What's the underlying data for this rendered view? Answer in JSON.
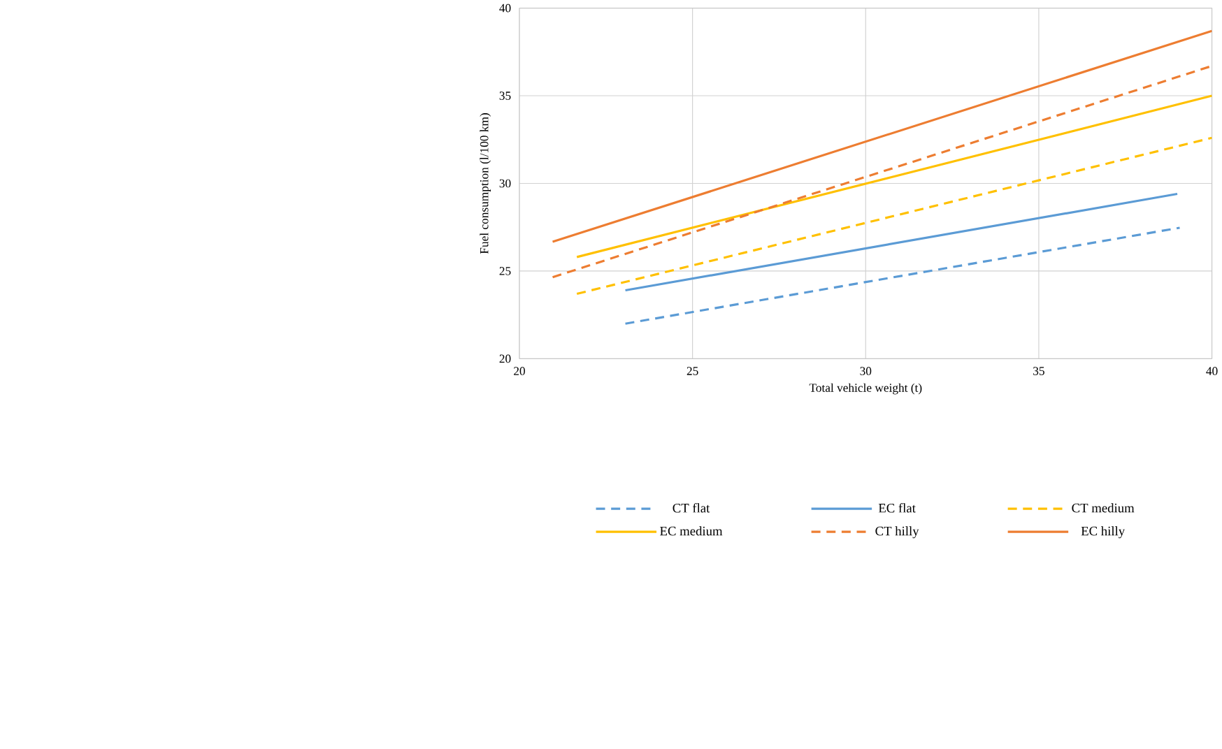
{
  "chart_data": {
    "type": "line",
    "xlabel": "Total vehicle  weight  (t)",
    "ylabel": "Fuel consumption  (l/100 km)",
    "xlim": [
      20,
      40
    ],
    "ylim": [
      20,
      40
    ],
    "xticks": [
      20,
      25,
      30,
      35,
      40
    ],
    "yticks": [
      20,
      25,
      30,
      35,
      40
    ],
    "grid": true,
    "legend": "bottom",
    "marker": "none",
    "series": [
      {
        "name": "CT flat",
        "color": "#5b9bd5",
        "line_style": "dashed",
        "x": [
          23.06,
          39.07
        ],
        "values": [
          22.0,
          27.47
        ]
      },
      {
        "name": "EC flat",
        "color": "#5b9bd5",
        "line_style": "solid",
        "x": [
          23.06,
          39.0
        ],
        "values": [
          23.9,
          29.4
        ]
      },
      {
        "name": "CT medium",
        "color": "#ffc000",
        "line_style": "dashed",
        "x": [
          21.66,
          40
        ],
        "values": [
          23.7,
          32.6
        ]
      },
      {
        "name": "EC medium",
        "color": "#ffc000",
        "line_style": "solid",
        "x": [
          21.66,
          40
        ],
        "values": [
          25.8,
          35.0
        ]
      },
      {
        "name": "CT hilly",
        "color": "#ed7d31",
        "line_style": "dashed",
        "x": [
          20.96,
          40
        ],
        "values": [
          24.65,
          36.7
        ]
      },
      {
        "name": "EC hilly",
        "color": "#ed7d31",
        "line_style": "solid",
        "x": [
          20.96,
          40
        ],
        "values": [
          26.67,
          38.7
        ]
      }
    ]
  }
}
